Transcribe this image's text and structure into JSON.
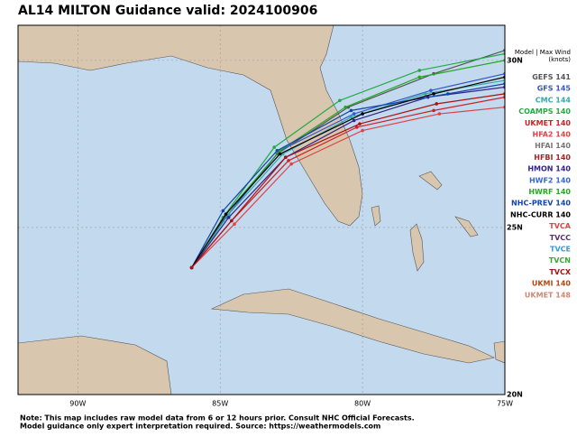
{
  "title": "AL14 MILTON Guidance valid: 2024100906",
  "legend_header": [
    "Model | Max Wind",
    "(knots)"
  ],
  "models": [
    {
      "name": "GEFS",
      "wind": 141,
      "color": "#555555"
    },
    {
      "name": "GFS",
      "wind": 145,
      "color": "#3355cc"
    },
    {
      "name": "CMC",
      "wind": 144,
      "color": "#33aaaa"
    },
    {
      "name": "COAMPS",
      "wind": 140,
      "color": "#22aa44"
    },
    {
      "name": "UKMET",
      "wind": 140,
      "color": "#cc2222"
    },
    {
      "name": "HFA2",
      "wind": 140,
      "color": "#dd4444"
    },
    {
      "name": "HFAI",
      "wind": 140,
      "color": "#777777"
    },
    {
      "name": "HFBI",
      "wind": 140,
      "color": "#aa2222"
    },
    {
      "name": "HMON",
      "wind": 140,
      "color": "#332288"
    },
    {
      "name": "HWF2",
      "wind": 140,
      "color": "#3366dd"
    },
    {
      "name": "HWRF",
      "wind": 140,
      "color": "#22aa22"
    },
    {
      "name": "NHC-PREV",
      "wind": 140,
      "color": "#1144aa"
    },
    {
      "name": "NHC-CURR",
      "wind": 140,
      "color": "#000000"
    },
    {
      "name": "TVCA",
      "color": "#dd4444"
    },
    {
      "name": "TVCC",
      "color": "#553366"
    },
    {
      "name": "TVCE",
      "color": "#3399dd"
    },
    {
      "name": "TVCN",
      "color": "#33aa33"
    },
    {
      "name": "TVCX",
      "color": "#aa1111"
    },
    {
      "name": "UKMI",
      "wind": 140,
      "color": "#bb4411"
    },
    {
      "name": "UKMET",
      "wind": 148,
      "color": "#cc8877"
    }
  ],
  "xlim": [
    -92.1,
    -75
  ],
  "ylim": [
    20,
    31.05
  ],
  "xticks": [
    {
      "value": -90,
      "label": "90W"
    },
    {
      "value": -85,
      "label": "85W"
    },
    {
      "value": -80,
      "label": "80W"
    },
    {
      "value": -75,
      "label": "75W"
    }
  ],
  "yticks": [
    {
      "value": 30,
      "label": "30N"
    },
    {
      "value": 25,
      "label": "25N"
    },
    {
      "value": 20,
      "label": "20N"
    }
  ],
  "tracks": [
    {
      "color": "#555555",
      "lon": [
        -86.0,
        -84.9,
        -83.0,
        -80.5,
        -77.5,
        -75.0
      ],
      "lat": [
        23.8,
        25.2,
        27.2,
        28.6,
        29.6,
        30.3
      ]
    },
    {
      "color": "#3355cc",
      "lon": [
        -86.0,
        -84.8,
        -82.9,
        -80.3,
        -77.6,
        -75.0
      ],
      "lat": [
        23.8,
        25.3,
        27.3,
        28.4,
        29.1,
        29.6
      ]
    },
    {
      "color": "#33aaaa",
      "lon": [
        -86.0,
        -84.7,
        -82.8,
        -80.4,
        -77.8,
        -75.0
      ],
      "lat": [
        23.8,
        25.4,
        27.2,
        28.3,
        29.0,
        29.4
      ]
    },
    {
      "color": "#22aa44",
      "lon": [
        -86.0,
        -84.9,
        -83.1,
        -80.8,
        -78.0,
        -75.0
      ],
      "lat": [
        23.8,
        25.3,
        27.4,
        28.8,
        29.7,
        30.2
      ]
    },
    {
      "color": "#cc2222",
      "lon": [
        -86.0,
        -84.6,
        -82.6,
        -80.2,
        -77.5,
        -75.0
      ],
      "lat": [
        23.8,
        25.2,
        27.0,
        28.0,
        28.5,
        28.9
      ]
    },
    {
      "color": "#dd4444",
      "lon": [
        -86.0,
        -84.5,
        -82.5,
        -80.0,
        -77.3,
        -75.0
      ],
      "lat": [
        23.8,
        25.1,
        26.9,
        27.9,
        28.4,
        28.6
      ]
    },
    {
      "color": "#332288",
      "lon": [
        -86.0,
        -84.7,
        -82.7,
        -80.3,
        -77.7,
        -75.0
      ],
      "lat": [
        23.8,
        25.3,
        27.1,
        28.2,
        28.9,
        29.2
      ]
    },
    {
      "color": "#22aa22",
      "lon": [
        -86.0,
        -84.8,
        -82.9,
        -80.6,
        -78.0,
        -75.0
      ],
      "lat": [
        23.8,
        25.4,
        27.3,
        28.6,
        29.5,
        30.0
      ]
    },
    {
      "color": "#1144aa",
      "lon": [
        -86.0,
        -84.9,
        -83.0,
        -80.4,
        -77.0,
        -75.0
      ],
      "lat": [
        23.8,
        25.5,
        27.3,
        28.5,
        29.0,
        29.3
      ]
    },
    {
      "color": "#000000",
      "lon": [
        -86.0,
        -84.8,
        -82.9,
        -80.0,
        -77.5,
        -75.0
      ],
      "lat": [
        23.8,
        25.4,
        27.2,
        28.4,
        29.0,
        29.5
      ]
    },
    {
      "color": "#aa1111",
      "lon": [
        -86.0,
        -84.6,
        -82.7,
        -80.1,
        -77.4,
        -75.0
      ],
      "lat": [
        23.8,
        25.2,
        27.1,
        28.1,
        28.7,
        29.0
      ]
    }
  ],
  "note": [
    "Note: This map includes raw model data from 6 or 12 hours prior. Consult NHC Official Forecasts.",
    "Model guidance only expert interpretation required. Source: https://weathermodels.com"
  ]
}
